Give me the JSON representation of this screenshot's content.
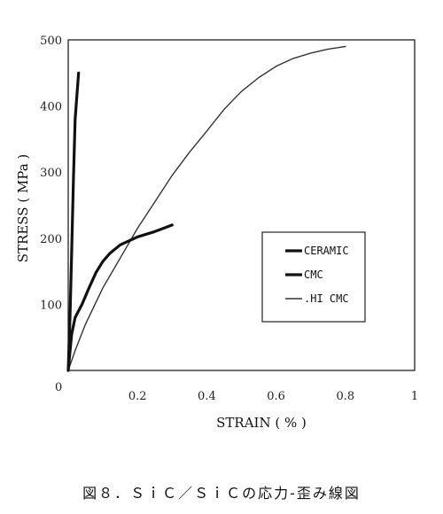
{
  "chart_data": {
    "type": "line",
    "xlabel": "STRAIN ( % )",
    "ylabel": "STRESS ( MPa )",
    "xlim": [
      0,
      1
    ],
    "ylim": [
      0,
      500
    ],
    "x_ticks": [
      "0.2",
      "0.4",
      "0.6",
      "0.8",
      "1"
    ],
    "y_ticks": [
      "100",
      "200",
      "300",
      "400",
      "500"
    ],
    "origin_label": "0",
    "grid": false,
    "legend_position": "right-middle",
    "series": [
      {
        "name": "CERAMIC",
        "style": "solid-thick",
        "color": "#111111",
        "x": [
          0,
          0.005,
          0.01,
          0.015,
          0.02,
          0.03
        ],
        "y": [
          0,
          80,
          180,
          290,
          380,
          450
        ]
      },
      {
        "name": "CMC",
        "style": "solid-thick",
        "color": "#111111",
        "x": [
          0,
          0.01,
          0.02,
          0.04,
          0.06,
          0.08,
          0.1,
          0.12,
          0.15,
          0.2,
          0.25,
          0.3
        ],
        "y": [
          0,
          55,
          80,
          100,
          125,
          148,
          165,
          177,
          190,
          202,
          210,
          220
        ]
      },
      {
        "name": ".HI CMC",
        "style": "solid-thin",
        "color": "#333333",
        "x": [
          0,
          0.02,
          0.05,
          0.1,
          0.15,
          0.2,
          0.25,
          0.3,
          0.35,
          0.4,
          0.45,
          0.5,
          0.55,
          0.6,
          0.65,
          0.7,
          0.75,
          0.8
        ],
        "y": [
          0,
          30,
          70,
          125,
          170,
          215,
          255,
          295,
          330,
          362,
          395,
          422,
          443,
          460,
          472,
          480,
          486,
          490
        ]
      }
    ]
  },
  "caption": "図８．ＳｉＣ／ＳｉＣの応力-歪み線図"
}
